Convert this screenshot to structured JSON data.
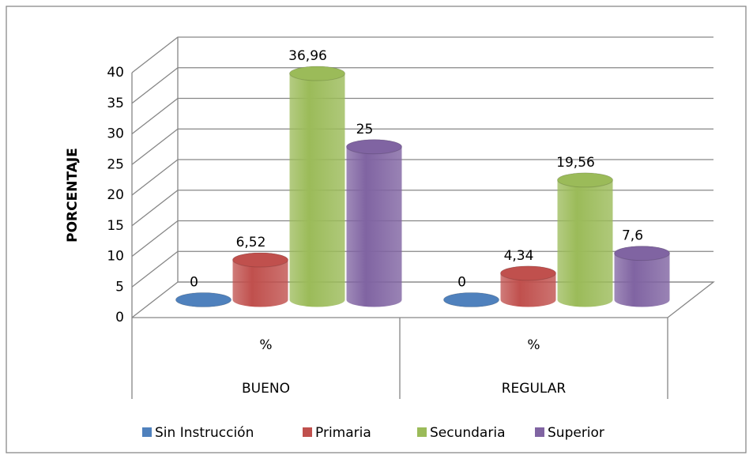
{
  "chart_data": {
    "type": "bar3d",
    "y_label": "PORCENTAJE",
    "categories": [
      "%",
      "%"
    ],
    "groups": [
      "BUENO",
      "REGULAR"
    ],
    "series": [
      {
        "name": "Sin Instrucción",
        "color": "#4f81bd",
        "values": [
          0,
          0
        ]
      },
      {
        "name": "Primaria",
        "color": "#c0504d",
        "values": [
          6.52,
          4.34
        ],
        "value_labels": [
          "6,52",
          "4,34"
        ]
      },
      {
        "name": "Secundaria",
        "color": "#9bbb59",
        "values": [
          36.96,
          19.56
        ],
        "value_labels": [
          "36,96",
          "19,56"
        ]
      },
      {
        "name": "Superior",
        "color": "#8064a2",
        "values": [
          25,
          7.6
        ],
        "value_labels": [
          "25",
          "7,6"
        ]
      }
    ],
    "ylim": [
      0,
      40
    ],
    "yticks": [
      0,
      5,
      10,
      15,
      20,
      25,
      30,
      35,
      40
    ],
    "grid": true,
    "legend": "bottom"
  }
}
